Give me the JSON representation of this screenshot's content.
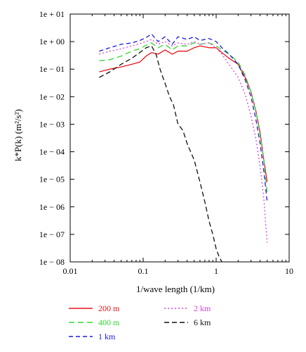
{
  "chart_data": {
    "type": "line",
    "title": "",
    "xlabel": "1/wave length (1/km)",
    "ylabel": "k*P(k) (m²/s²)",
    "xscale": "log",
    "yscale": "log",
    "xlim": [
      0.01,
      10
    ],
    "ylim": [
      1e-08,
      10
    ],
    "grid": false,
    "legend_position": "bottom",
    "x_ticks": [
      {
        "value": 0.01,
        "label": "0.01"
      },
      {
        "value": 0.1,
        "label": "0.1"
      },
      {
        "value": 1,
        "label": "1"
      },
      {
        "value": 10,
        "label": "10"
      }
    ],
    "y_ticks": [
      {
        "value": 10,
        "label": "1e + 01"
      },
      {
        "value": 1,
        "label": "1e + 00"
      },
      {
        "value": 0.1,
        "label": "1e − 01"
      },
      {
        "value": 0.01,
        "label": "1e − 02"
      },
      {
        "value": 0.001,
        "label": "1e − 03"
      },
      {
        "value": 0.0001,
        "label": "1e − 04"
      },
      {
        "value": 1e-05,
        "label": "1e − 05"
      },
      {
        "value": 1e-06,
        "label": "1e − 06"
      },
      {
        "value": 1e-07,
        "label": "1e − 07"
      },
      {
        "value": 1e-08,
        "label": "1e − 08"
      }
    ],
    "series": [
      {
        "name": "200 m",
        "color": "#e8141c",
        "dash": "solid",
        "x": [
          0.025,
          0.035,
          0.05,
          0.07,
          0.09,
          0.11,
          0.13,
          0.16,
          0.2,
          0.25,
          0.3,
          0.4,
          0.5,
          0.6,
          0.8,
          1.0,
          1.2,
          1.5,
          2.0,
          2.5,
          3.0,
          3.5,
          4.0,
          4.5,
          5.0
        ],
        "y": [
          0.08,
          0.1,
          0.12,
          0.15,
          0.18,
          0.3,
          0.4,
          0.35,
          0.5,
          0.35,
          0.45,
          0.45,
          0.6,
          0.7,
          0.6,
          0.6,
          0.4,
          0.25,
          0.15,
          0.05,
          0.015,
          0.003,
          0.0005,
          5e-05,
          8e-06
        ]
      },
      {
        "name": "400 m",
        "color": "#2ed82e",
        "dash": "8,5",
        "x": [
          0.025,
          0.035,
          0.05,
          0.07,
          0.09,
          0.11,
          0.13,
          0.16,
          0.2,
          0.25,
          0.3,
          0.4,
          0.5,
          0.6,
          0.8,
          1.0,
          1.2,
          1.5,
          2.0,
          2.5,
          3.0,
          3.5,
          4.0,
          4.5,
          5.0
        ],
        "y": [
          0.2,
          0.22,
          0.3,
          0.45,
          0.55,
          0.75,
          0.9,
          0.6,
          0.8,
          0.5,
          0.7,
          0.7,
          0.9,
          0.8,
          0.9,
          0.7,
          0.5,
          0.35,
          0.18,
          0.06,
          0.015,
          0.003,
          0.0004,
          5e-05,
          3e-06
        ]
      },
      {
        "name": "1 km",
        "color": "#1a1ae0",
        "dash": "6,4",
        "x": [
          0.025,
          0.035,
          0.05,
          0.07,
          0.09,
          0.11,
          0.13,
          0.16,
          0.2,
          0.25,
          0.3,
          0.4,
          0.5,
          0.6,
          0.8,
          1.0,
          1.2,
          1.5,
          2.0,
          2.5,
          3.0,
          3.5,
          4.0,
          4.5,
          5.0
        ],
        "y": [
          0.45,
          0.6,
          0.8,
          0.9,
          1.1,
          1.4,
          1.9,
          1.0,
          1.5,
          0.8,
          1.5,
          1.2,
          1.5,
          1.1,
          1.3,
          1.0,
          0.6,
          0.35,
          0.15,
          0.04,
          0.01,
          0.0015,
          0.0002,
          2e-05,
          1.5e-06
        ]
      },
      {
        "name": "2 km",
        "color": "#e040e0",
        "dash": "2,3",
        "x": [
          0.025,
          0.035,
          0.05,
          0.07,
          0.09,
          0.11,
          0.13,
          0.16,
          0.2,
          0.25,
          0.3,
          0.4,
          0.5,
          0.6,
          0.8,
          1.0,
          1.2,
          1.5,
          2.0,
          2.5,
          3.0,
          3.5,
          4.0,
          4.5,
          5.0
        ],
        "y": [
          0.35,
          0.45,
          0.55,
          0.7,
          0.85,
          1.0,
          1.2,
          0.8,
          1.0,
          0.7,
          0.9,
          0.8,
          1.0,
          0.8,
          0.9,
          0.6,
          0.35,
          0.15,
          0.05,
          0.012,
          0.002,
          0.0003,
          3e-05,
          2e-06,
          5e-08
        ]
      },
      {
        "name": "6 km",
        "color": "#111111",
        "dash": "7,4",
        "x": [
          0.025,
          0.035,
          0.05,
          0.07,
          0.09,
          0.11,
          0.13,
          0.15,
          0.17,
          0.2,
          0.23,
          0.26,
          0.3,
          0.35,
          0.4,
          0.5,
          0.6,
          0.7,
          0.8,
          0.9,
          1.0,
          1.1,
          1.2
        ],
        "y": [
          0.05,
          0.08,
          0.15,
          0.25,
          0.4,
          0.6,
          0.7,
          0.35,
          0.1,
          0.03,
          0.01,
          0.005,
          0.001,
          0.0006,
          0.0002,
          5e-05,
          8e-06,
          1.5e-06,
          3e-07,
          1e-07,
          3e-08,
          1.5e-08,
          1e-08
        ]
      }
    ]
  }
}
